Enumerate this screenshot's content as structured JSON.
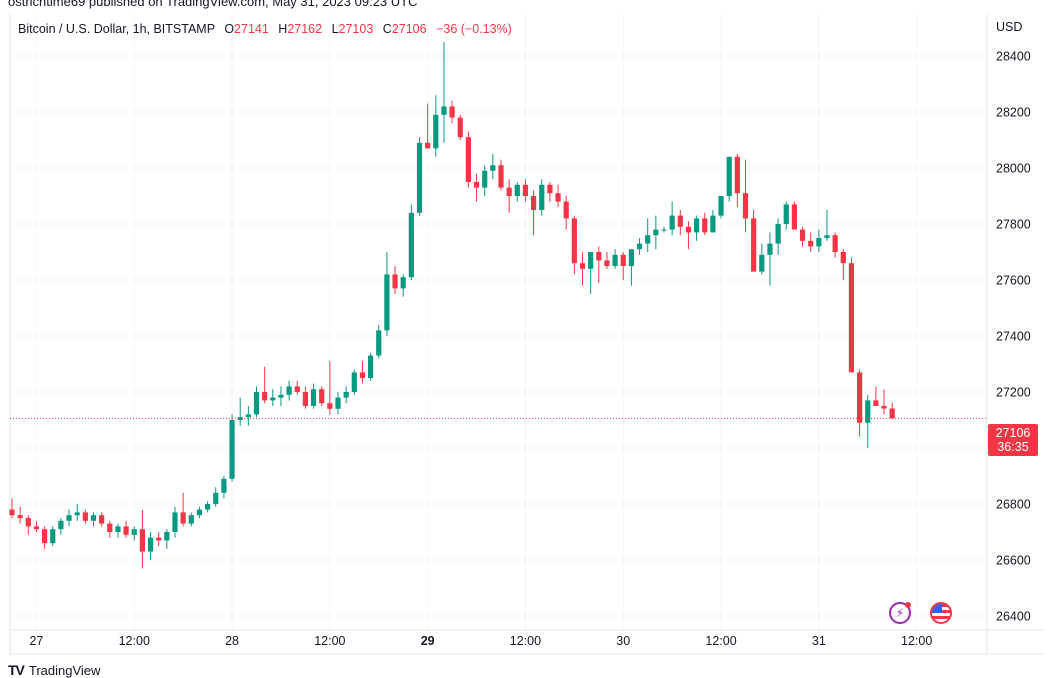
{
  "publisher_line": "ostrichtime69 published on TradingView.com, May 31, 2023 09:23 UTC",
  "legend": {
    "symbol": "Bitcoin / U.S. Dollar, 1h, BITSTAMP",
    "open_label": "O",
    "open": "27141",
    "high_label": "H",
    "high": "27162",
    "low_label": "L",
    "low": "27103",
    "close_label": "C",
    "close": "27106",
    "change": "−36 (−0.13%)"
  },
  "currency": "USD",
  "last_price": {
    "value": "27106",
    "countdown": "36:35"
  },
  "footer": {
    "brand_logo": "TV",
    "brand": "TradingView"
  },
  "icons": {
    "flash": "flash-icon",
    "flag": "us-flag-icon"
  },
  "colors": {
    "up": "#089981",
    "down": "#f23645",
    "grid": "#f0f3fa",
    "axis_text": "#131722"
  },
  "chart_data": {
    "type": "candlestick",
    "ylim": [
      26350,
      28550
    ],
    "y_ticks": [
      26400,
      26600,
      26800,
      27000,
      27200,
      27400,
      27600,
      27800,
      28000,
      28200,
      28400
    ],
    "x_ticks": [
      {
        "label": "27",
        "index": 3,
        "bold": false
      },
      {
        "label": "12:00",
        "index": 15,
        "bold": false
      },
      {
        "label": "28",
        "index": 27,
        "bold": false
      },
      {
        "label": "12:00",
        "index": 39,
        "bold": false
      },
      {
        "label": "29",
        "index": 51,
        "bold": true
      },
      {
        "label": "12:00",
        "index": 63,
        "bold": false
      },
      {
        "label": "30",
        "index": 75,
        "bold": false
      },
      {
        "label": "12:00",
        "index": 87,
        "bold": false
      },
      {
        "label": "31",
        "index": 99,
        "bold": false
      },
      {
        "label": "12:00",
        "index": 111,
        "bold": false
      }
    ],
    "candles": [
      [
        26780,
        26820,
        26750,
        26760
      ],
      [
        26760,
        26790,
        26730,
        26750
      ],
      [
        26750,
        26760,
        26690,
        26720
      ],
      [
        26720,
        26740,
        26700,
        26710
      ],
      [
        26710,
        26720,
        26640,
        26660
      ],
      [
        26660,
        26720,
        26650,
        26710
      ],
      [
        26710,
        26750,
        26690,
        26740
      ],
      [
        26740,
        26780,
        26720,
        26760
      ],
      [
        26760,
        26800,
        26740,
        26770
      ],
      [
        26770,
        26780,
        26730,
        26740
      ],
      [
        26740,
        26770,
        26720,
        26760
      ],
      [
        26760,
        26770,
        26720,
        26730
      ],
      [
        26730,
        26740,
        26680,
        26700
      ],
      [
        26700,
        26730,
        26680,
        26720
      ],
      [
        26720,
        26740,
        26680,
        26690
      ],
      [
        26690,
        26720,
        26670,
        26710
      ],
      [
        26710,
        26780,
        26570,
        26630
      ],
      [
        26630,
        26700,
        26600,
        26680
      ],
      [
        26680,
        26700,
        26650,
        26670
      ],
      [
        26670,
        26710,
        26640,
        26700
      ],
      [
        26700,
        26790,
        26680,
        26770
      ],
      [
        26770,
        26840,
        26720,
        26730
      ],
      [
        26730,
        26770,
        26720,
        26760
      ],
      [
        26760,
        26790,
        26750,
        26780
      ],
      [
        26780,
        26810,
        26770,
        26800
      ],
      [
        26800,
        26860,
        26790,
        26840
      ],
      [
        26840,
        26900,
        26820,
        26890
      ],
      [
        26890,
        27120,
        26880,
        27100
      ],
      [
        27100,
        27180,
        27080,
        27110
      ],
      [
        27110,
        27150,
        27080,
        27120
      ],
      [
        27120,
        27220,
        27110,
        27200
      ],
      [
        27200,
        27290,
        27160,
        27170
      ],
      [
        27170,
        27210,
        27150,
        27180
      ],
      [
        27180,
        27220,
        27150,
        27190
      ],
      [
        27190,
        27240,
        27170,
        27220
      ],
      [
        27220,
        27240,
        27190,
        27200
      ],
      [
        27200,
        27220,
        27140,
        27150
      ],
      [
        27150,
        27230,
        27140,
        27210
      ],
      [
        27210,
        27220,
        27150,
        27160
      ],
      [
        27160,
        27310,
        27120,
        27140
      ],
      [
        27140,
        27200,
        27120,
        27180
      ],
      [
        27180,
        27220,
        27160,
        27200
      ],
      [
        27200,
        27280,
        27190,
        27270
      ],
      [
        27270,
        27310,
        27230,
        27250
      ],
      [
        27250,
        27340,
        27240,
        27330
      ],
      [
        27330,
        27440,
        27320,
        27420
      ],
      [
        27420,
        27700,
        27400,
        27620
      ],
      [
        27620,
        27650,
        27550,
        27570
      ],
      [
        27570,
        27620,
        27540,
        27610
      ],
      [
        27610,
        27870,
        27600,
        27840
      ],
      [
        27840,
        28110,
        27830,
        28090
      ],
      [
        28090,
        28230,
        28070,
        28070
      ],
      [
        28070,
        28260,
        28040,
        28190
      ],
      [
        28190,
        28450,
        28090,
        28220
      ],
      [
        28220,
        28240,
        28160,
        28180
      ],
      [
        28180,
        28190,
        28100,
        28110
      ],
      [
        28110,
        28130,
        27930,
        27950
      ],
      [
        27950,
        27980,
        27880,
        27930
      ],
      [
        27930,
        28010,
        27900,
        27990
      ],
      [
        27990,
        28050,
        27960,
        28010
      ],
      [
        28010,
        28030,
        27920,
        27930
      ],
      [
        27930,
        27960,
        27840,
        27900
      ],
      [
        27900,
        27950,
        27880,
        27940
      ],
      [
        27940,
        27960,
        27880,
        27900
      ],
      [
        27900,
        27920,
        27760,
        27850
      ],
      [
        27850,
        27960,
        27830,
        27940
      ],
      [
        27940,
        27950,
        27880,
        27910
      ],
      [
        27910,
        27940,
        27860,
        27880
      ],
      [
        27880,
        27900,
        27780,
        27820
      ],
      [
        27820,
        27830,
        27620,
        27660
      ],
      [
        27660,
        27700,
        27580,
        27640
      ],
      [
        27640,
        27700,
        27550,
        27700
      ],
      [
        27700,
        27720,
        27590,
        27670
      ],
      [
        27670,
        27700,
        27640,
        27650
      ],
      [
        27650,
        27710,
        27640,
        27690
      ],
      [
        27690,
        27700,
        27600,
        27650
      ],
      [
        27650,
        27700,
        27580,
        27710
      ],
      [
        27710,
        27750,
        27690,
        27730
      ],
      [
        27730,
        27820,
        27700,
        27760
      ],
      [
        27760,
        27830,
        27710,
        27780
      ],
      [
        27780,
        27790,
        27770,
        27780
      ],
      [
        27780,
        27880,
        27760,
        27830
      ],
      [
        27830,
        27850,
        27760,
        27790
      ],
      [
        27790,
        27810,
        27710,
        27770
      ],
      [
        27770,
        27830,
        27740,
        27820
      ],
      [
        27820,
        27840,
        27760,
        27770
      ],
      [
        27770,
        27850,
        27770,
        27830
      ],
      [
        27830,
        27900,
        27820,
        27900
      ],
      [
        27900,
        28040,
        27880,
        28040
      ],
      [
        28040,
        28050,
        27860,
        27910
      ],
      [
        27910,
        28030,
        27770,
        27820
      ],
      [
        27820,
        27850,
        27630,
        27630
      ],
      [
        27630,
        27730,
        27620,
        27690
      ],
      [
        27690,
        27770,
        27580,
        27730
      ],
      [
        27730,
        27820,
        27690,
        27800
      ],
      [
        27800,
        27880,
        27780,
        27870
      ],
      [
        27870,
        27880,
        27780,
        27780
      ],
      [
        27780,
        27790,
        27720,
        27740
      ],
      [
        27740,
        27770,
        27700,
        27720
      ],
      [
        27720,
        27780,
        27700,
        27750
      ],
      [
        27750,
        27850,
        27740,
        27760
      ],
      [
        27760,
        27770,
        27680,
        27700
      ],
      [
        27700,
        27710,
        27600,
        27660
      ],
      [
        27660,
        27680,
        27270,
        27270
      ],
      [
        27270,
        27280,
        27040,
        27090
      ],
      [
        27090,
        27190,
        27000,
        27170
      ],
      [
        27170,
        27220,
        27150,
        27150
      ],
      [
        27150,
        27210,
        27120,
        27141
      ],
      [
        27141,
        27162,
        27103,
        27106
      ]
    ]
  }
}
